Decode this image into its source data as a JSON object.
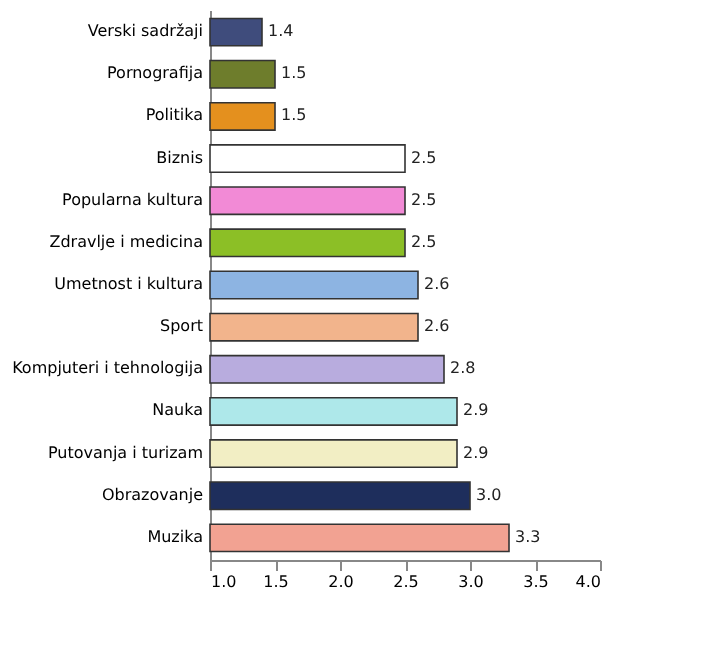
{
  "chart_data": {
    "type": "bar",
    "orientation": "horizontal",
    "categories": [
      "Verski sadržaji",
      "Pornografija",
      "Politika",
      "Biznis",
      "Popularna kultura",
      "Zdravlje i medicina",
      "Umetnost i kultura",
      "Sport",
      "Kompjuteri i tehnologija",
      "Nauka",
      "Putovanja i turizam",
      "Obrazovanje",
      "Muzika"
    ],
    "values": [
      1.4,
      1.5,
      1.5,
      2.5,
      2.5,
      2.5,
      2.6,
      2.6,
      2.8,
      2.9,
      2.9,
      3.0,
      3.3
    ],
    "value_labels": [
      "1.4",
      "1.5",
      "1.5",
      "2.5",
      "2.5",
      "2.5",
      "2.6",
      "2.6",
      "2.8",
      "2.9",
      "2.9",
      "3.0",
      "3.3"
    ],
    "colors": [
      "#3f4c7c",
      "#6e7d2c",
      "#e4901e",
      "#ffffff",
      "#f28ad6",
      "#8cbf26",
      "#8db4e2",
      "#f2b48c",
      "#b8acde",
      "#aee8ea",
      "#f2eec4",
      "#1e2e5c",
      "#f2a292"
    ],
    "xlim": [
      1,
      4
    ],
    "xticks": [
      {
        "value": 1,
        "label": "1.0"
      },
      {
        "value": 1.5,
        "label": "1.5"
      },
      {
        "value": 2,
        "label": "2.0"
      },
      {
        "value": 2.5,
        "label": "2.5"
      },
      {
        "value": 3,
        "label": "3.0"
      },
      {
        "value": 3.5,
        "label": "3.5"
      },
      {
        "value": 4,
        "label": "4.0"
      }
    ],
    "grid": false,
    "legend": false
  }
}
